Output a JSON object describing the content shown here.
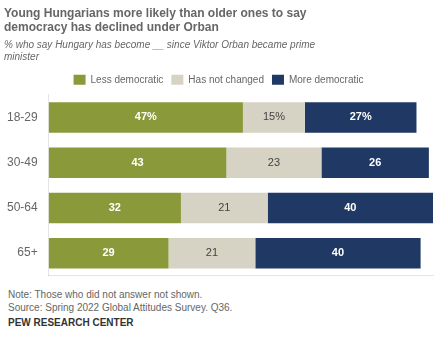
{
  "chart_data": {
    "type": "bar",
    "orientation": "horizontal",
    "stacked": true,
    "title": "Young Hungarians more likely than older ones to say\ndemocracy has declined under Orban",
    "subtitle": "% who say Hungary has become __ since Viktor Orban became prime\nminister",
    "categories": [
      "18-29",
      "30-49",
      "50-64",
      "65+"
    ],
    "series": [
      {
        "name": "Less democratic",
        "color": "#8a9a3a",
        "values": [
          47,
          43,
          32,
          29
        ],
        "value_labels": [
          "47%",
          "43",
          "32",
          "29"
        ]
      },
      {
        "name": "Has not changed",
        "color": "#d6d2c4",
        "values": [
          15,
          23,
          21,
          21
        ],
        "value_labels": [
          "15%",
          "23",
          "21",
          "21"
        ]
      },
      {
        "name": "More democratic",
        "color": "#1f3864",
        "values": [
          27,
          26,
          40,
          40
        ],
        "value_labels": [
          "27%",
          "26",
          "40",
          "40"
        ]
      }
    ],
    "xlim": [
      0,
      93
    ],
    "data_labels": true,
    "tick_labels": "y",
    "grid": false,
    "legend": "top",
    "annotations": [
      "Note: Those who did not answer not shown.\nSource: Spring 2022 Global Attitudes Survey. Q36.",
      "PEW RESEARCH CENTER"
    ]
  }
}
